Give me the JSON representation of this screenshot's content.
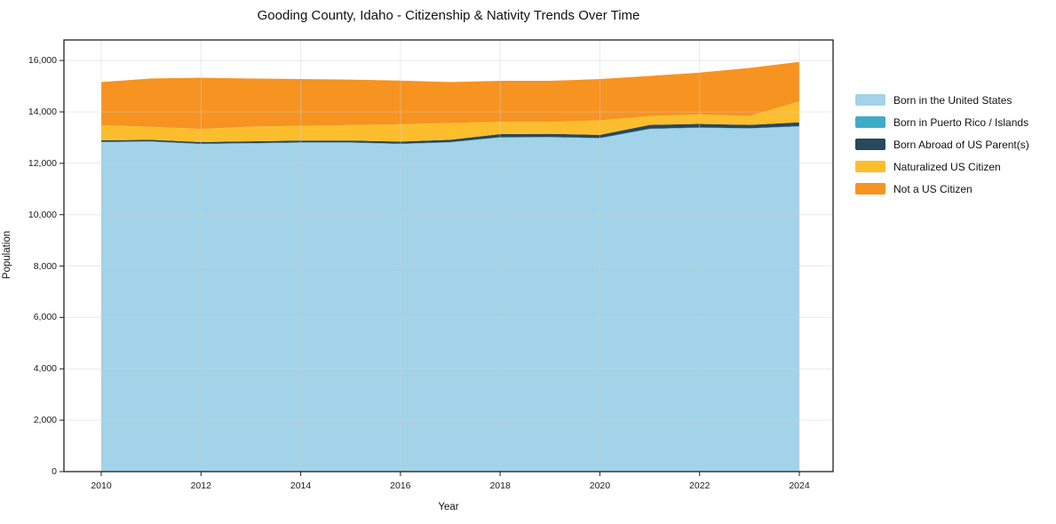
{
  "chart_data": {
    "type": "area",
    "stacked": true,
    "title": "Gooding County, Idaho - Citizenship & Nativity Trends Over Time",
    "xlabel": "Year",
    "ylabel": "Population",
    "x": [
      2010,
      2011,
      2012,
      2013,
      2014,
      2015,
      2016,
      2017,
      2018,
      2019,
      2020,
      2021,
      2022,
      2023,
      2024
    ],
    "series": [
      {
        "id": "born-us",
        "name": "Born in the United States",
        "color": "#a2d3e8",
        "values": [
          12820,
          12840,
          12750,
          12770,
          12800,
          12800,
          12750,
          12810,
          13000,
          13010,
          12970,
          13330,
          13380,
          13350,
          13430
        ]
      },
      {
        "id": "born-pr",
        "name": "Born in Puerto Rico / Islands",
        "color": "#3fabc6",
        "values": [
          15,
          15,
          15,
          15,
          15,
          15,
          15,
          15,
          15,
          15,
          15,
          15,
          15,
          15,
          20
        ]
      },
      {
        "id": "born-abroad",
        "name": "Born Abroad of US Parent(s)",
        "color": "#28485c",
        "values": [
          60,
          60,
          60,
          70,
          70,
          70,
          80,
          90,
          120,
          120,
          120,
          150,
          140,
          130,
          145
        ]
      },
      {
        "id": "naturalized",
        "name": "Naturalized US Citizen",
        "color": "#fcbe2d",
        "values": [
          585,
          505,
          515,
          575,
          575,
          605,
          675,
          655,
          475,
          465,
          565,
          345,
          365,
          345,
          815
        ]
      },
      {
        "id": "not-citizen",
        "name": "Not a US Citizen",
        "color": "#f79320",
        "values": [
          1680,
          1880,
          1990,
          1870,
          1820,
          1770,
          1700,
          1590,
          1600,
          1600,
          1610,
          1560,
          1630,
          1870,
          1540
        ]
      }
    ],
    "totals": [
      15160,
      15300,
      15330,
      15300,
      15280,
      15260,
      15220,
      15160,
      15210,
      15210,
      15280,
      15400,
      15530,
      15710,
      15950
    ],
    "ylim": [
      0,
      16800
    ],
    "yticks": [
      0,
      2000,
      4000,
      6000,
      8000,
      10000,
      12000,
      14000,
      16000
    ],
    "xticks": [
      2010,
      2012,
      2014,
      2016,
      2018,
      2020,
      2022,
      2024
    ],
    "grid": true,
    "legend_position": "right-outside"
  },
  "style": {
    "grid_color": "#cfcfcf",
    "spine_color": "#1f1f1f",
    "background": "#ffffff"
  }
}
